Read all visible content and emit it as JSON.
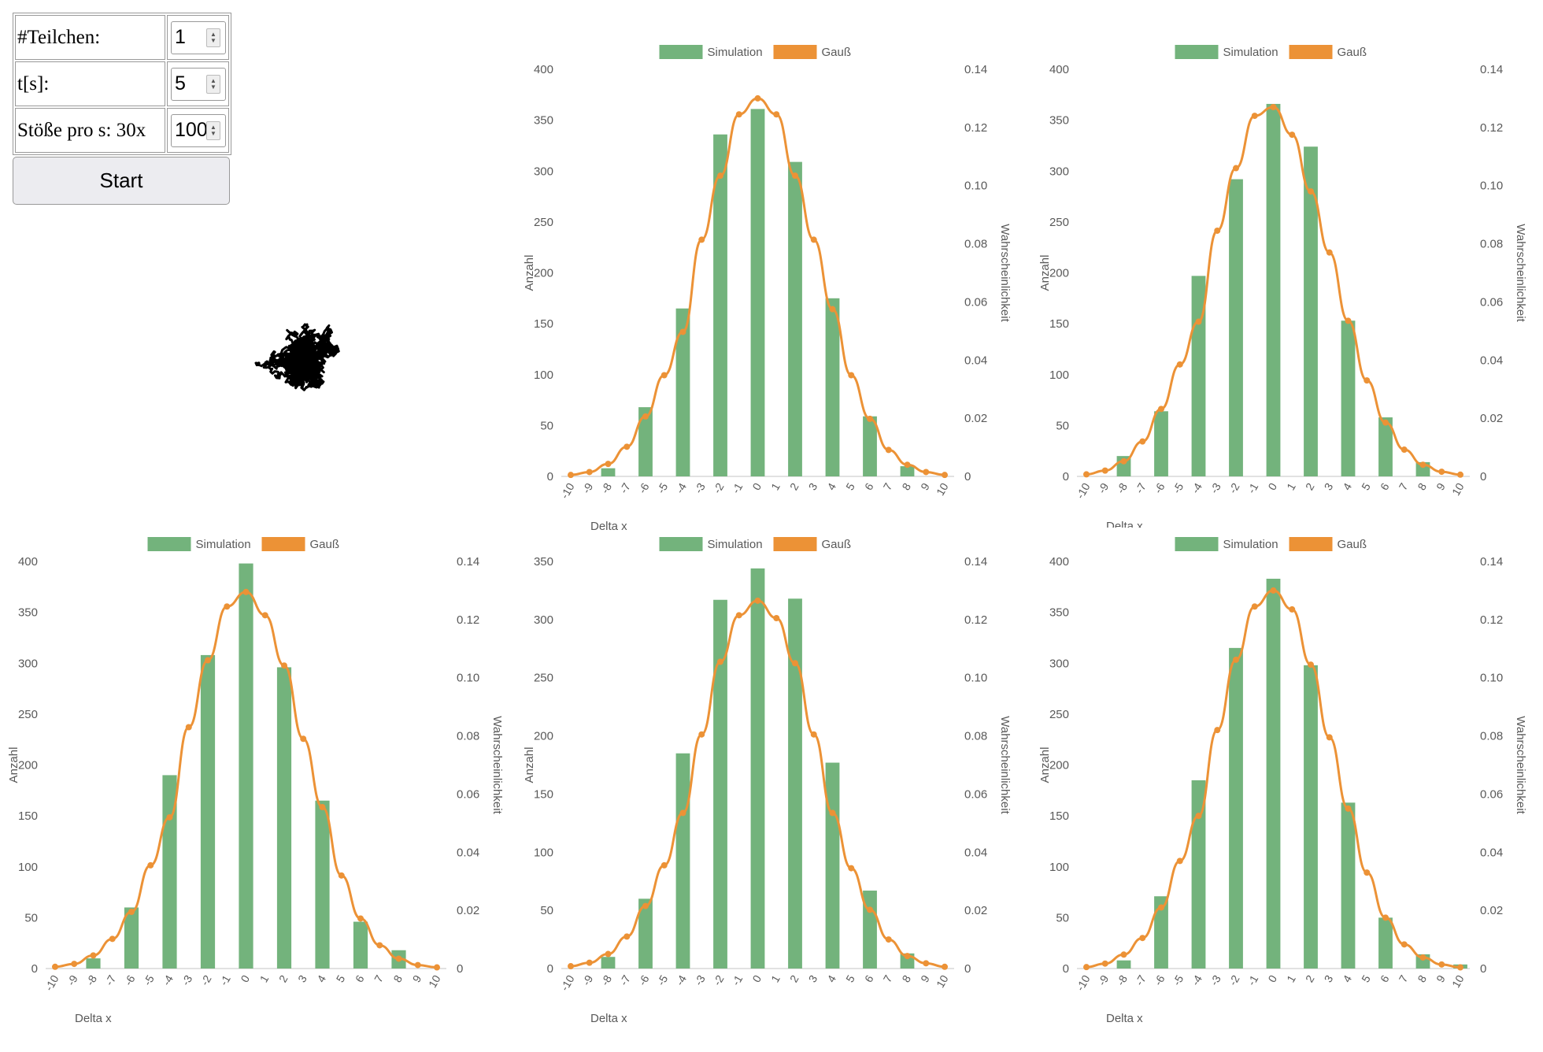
{
  "controls": {
    "particles": {
      "label": "#Teilchen:",
      "value": "1"
    },
    "time": {
      "label": "t[s]:",
      "value": "5"
    },
    "collisions": {
      "label": "Stöße pro s: 30x",
      "value": "100"
    },
    "start_label": "Start"
  },
  "colors": {
    "simulation": "#73b37c",
    "gauss": "#ec9236",
    "axis": "#d9d9d9",
    "text": "#595959"
  },
  "chart_data": [
    {
      "type": "bar",
      "legend": [
        "Simulation",
        "Gauß"
      ],
      "xlabel": "Delta x",
      "ylabel": "Anzahl",
      "y2label": "Wahrscheinlichkeit",
      "categories": [
        "-10",
        "-9",
        "-8",
        "-7",
        "-6",
        "-5",
        "-4",
        "-3",
        "-2",
        "-1",
        "0",
        "1",
        "2",
        "3",
        "4",
        "5",
        "6",
        "7",
        "8",
        "9",
        "10"
      ],
      "ylim": [
        0,
        400
      ],
      "y2lim": [
        0,
        0.14
      ],
      "yticks": [
        "0",
        "50",
        "100",
        "150",
        "200",
        "250",
        "300",
        "350",
        "400"
      ],
      "y2ticks": [
        "0",
        "0.02",
        "0.04",
        "0.06",
        "0.08",
        "0.10",
        "0.12",
        "0.14"
      ],
      "series": [
        {
          "name": "Simulation",
          "values": [
            0,
            null,
            8,
            null,
            68,
            null,
            165,
            null,
            336,
            null,
            361,
            null,
            309,
            null,
            175,
            null,
            59,
            null,
            10,
            null,
            0
          ]
        },
        {
          "name": "Gauß",
          "values": [
            0.0005,
            0.0015,
            0.0043,
            0.0102,
            0.0206,
            0.0348,
            0.0497,
            0.0814,
            0.1034,
            0.1245,
            0.13,
            0.1245,
            0.1034,
            0.0814,
            0.0575,
            0.0348,
            0.0198,
            0.0091,
            0.004,
            0.0015,
            0.0005
          ]
        }
      ]
    },
    {
      "type": "bar",
      "legend": [
        "Simulation",
        "Gauß"
      ],
      "xlabel": "Delta x",
      "ylabel": "Anzahl",
      "y2label": "Wahrscheinlichkeit",
      "categories": [
        "-10",
        "-9",
        "-8",
        "-7",
        "-6",
        "-5",
        "-4",
        "-3",
        "-2",
        "-1",
        "0",
        "1",
        "2",
        "3",
        "4",
        "5",
        "6",
        "7",
        "8",
        "9",
        "10"
      ],
      "ylim": [
        0,
        400
      ],
      "y2lim": [
        0,
        0.14
      ],
      "yticks": [
        "0",
        "50",
        "100",
        "150",
        "200",
        "250",
        "300",
        "350",
        "400"
      ],
      "y2ticks": [
        "0",
        "0.02",
        "0.04",
        "0.06",
        "0.08",
        "0.10",
        "0.12",
        "0.14"
      ],
      "series": [
        {
          "name": "Simulation",
          "values": [
            0,
            null,
            20,
            null,
            64,
            null,
            197,
            null,
            292,
            null,
            366,
            null,
            324,
            null,
            153,
            null,
            58,
            null,
            14,
            null,
            0
          ]
        },
        {
          "name": "Gauß",
          "values": [
            0.0007,
            0.002,
            0.0052,
            0.012,
            0.0232,
            0.0385,
            0.0532,
            0.0845,
            0.106,
            0.124,
            0.127,
            0.1175,
            0.098,
            0.077,
            0.0535,
            0.033,
            0.0185,
            0.0092,
            0.004,
            0.0016,
            0.0006
          ]
        }
      ]
    },
    {
      "type": "bar",
      "legend": [
        "Simulation",
        "Gauß"
      ],
      "xlabel": "Delta x",
      "ylabel": "Anzahl",
      "y2label": "Wahrscheinlichkeit",
      "categories": [
        "-10",
        "-9",
        "-8",
        "-7",
        "-6",
        "-5",
        "-4",
        "-3",
        "-2",
        "-1",
        "0",
        "1",
        "2",
        "3",
        "4",
        "5",
        "6",
        "7",
        "8",
        "9",
        "10"
      ],
      "ylim": [
        0,
        400
      ],
      "y2lim": [
        0,
        0.14
      ],
      "yticks": [
        "0",
        "50",
        "100",
        "150",
        "200",
        "250",
        "300",
        "350",
        "400"
      ],
      "y2ticks": [
        "0",
        "0.02",
        "0.04",
        "0.06",
        "0.08",
        "0.10",
        "0.12",
        "0.14"
      ],
      "series": [
        {
          "name": "Simulation",
          "values": [
            0,
            null,
            10,
            null,
            60,
            null,
            190,
            null,
            308,
            null,
            398,
            null,
            296,
            null,
            165,
            null,
            46,
            null,
            18,
            null,
            0
          ]
        },
        {
          "name": "Gauß",
          "values": [
            0.0006,
            0.0016,
            0.0045,
            0.0102,
            0.0195,
            0.0355,
            0.052,
            0.083,
            0.106,
            0.1245,
            0.1295,
            0.1215,
            0.1042,
            0.079,
            0.0555,
            0.032,
            0.0172,
            0.008,
            0.0034,
            0.0012,
            0.0004
          ]
        }
      ]
    },
    {
      "type": "bar",
      "legend": [
        "Simulation",
        "Gauß"
      ],
      "xlabel": "Delta x",
      "ylabel": "Anzahl",
      "y2label": "Wahrscheinlichkeit",
      "categories": [
        "-10",
        "-9",
        "-8",
        "-7",
        "-6",
        "-5",
        "-4",
        "-3",
        "-2",
        "-1",
        "0",
        "1",
        "2",
        "3",
        "4",
        "5",
        "6",
        "7",
        "8",
        "9",
        "10"
      ],
      "ylim": [
        0,
        350
      ],
      "y2lim": [
        0,
        0.14
      ],
      "yticks": [
        "0",
        "50",
        "100",
        "150",
        "200",
        "250",
        "300",
        "350"
      ],
      "y2ticks": [
        "0",
        "0.02",
        "0.04",
        "0.06",
        "0.08",
        "0.10",
        "0.12",
        "0.14"
      ],
      "series": [
        {
          "name": "Simulation",
          "values": [
            0,
            null,
            10,
            null,
            60,
            null,
            185,
            null,
            317,
            null,
            344,
            null,
            318,
            null,
            177,
            null,
            67,
            null,
            13,
            null,
            0
          ]
        },
        {
          "name": "Gauß",
          "values": [
            0.0008,
            0.002,
            0.005,
            0.011,
            0.0215,
            0.0355,
            0.0535,
            0.0805,
            0.1055,
            0.1215,
            0.1265,
            0.1205,
            0.105,
            0.0805,
            0.0535,
            0.0345,
            0.0202,
            0.01,
            0.0043,
            0.0018,
            0.0006
          ]
        }
      ]
    },
    {
      "type": "bar",
      "legend": [
        "Simulation",
        "Gauß"
      ],
      "xlabel": "Delta x",
      "ylabel": "Anzahl",
      "y2label": "Wahrscheinlichkeit",
      "categories": [
        "-10",
        "-9",
        "-8",
        "-7",
        "-6",
        "-5",
        "-4",
        "-3",
        "-2",
        "-1",
        "0",
        "1",
        "2",
        "3",
        "4",
        "5",
        "6",
        "7",
        "8",
        "9",
        "10"
      ],
      "ylim": [
        0,
        400
      ],
      "y2lim": [
        0,
        0.14
      ],
      "yticks": [
        "0",
        "50",
        "100",
        "150",
        "200",
        "250",
        "300",
        "350",
        "400"
      ],
      "y2ticks": [
        "0",
        "0.02",
        "0.04",
        "0.06",
        "0.08",
        "0.10",
        "0.12",
        "0.14"
      ],
      "series": [
        {
          "name": "Simulation",
          "values": [
            0,
            null,
            8,
            null,
            71,
            null,
            185,
            null,
            315,
            null,
            383,
            null,
            298,
            null,
            163,
            null,
            50,
            null,
            14,
            null,
            4
          ]
        },
        {
          "name": "Gauß",
          "values": [
            0.0005,
            0.0017,
            0.0048,
            0.0105,
            0.021,
            0.037,
            0.0525,
            0.082,
            0.1062,
            0.1245,
            0.13,
            0.1235,
            0.1045,
            0.0795,
            0.055,
            0.033,
            0.0175,
            0.0083,
            0.0038,
            0.0014,
            0.0004
          ]
        }
      ]
    }
  ]
}
